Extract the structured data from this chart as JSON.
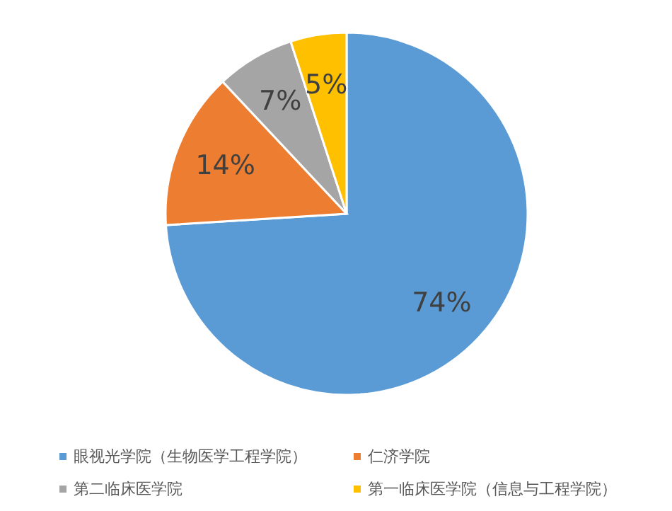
{
  "chart_data": {
    "type": "pie",
    "categories": [
      "眼视光学院（生物医学工程学院）",
      "仁济学院",
      "第二临床医学院",
      "第一临床医学院（信息与工程学院）"
    ],
    "values": [
      74,
      14,
      7,
      5
    ],
    "colors": [
      "#5b9bd5",
      "#ed7d31",
      "#a5a5a5",
      "#ffc000"
    ],
    "value_labels": [
      "74%",
      "14%",
      "7%",
      "5%"
    ],
    "legend": "bottom"
  }
}
